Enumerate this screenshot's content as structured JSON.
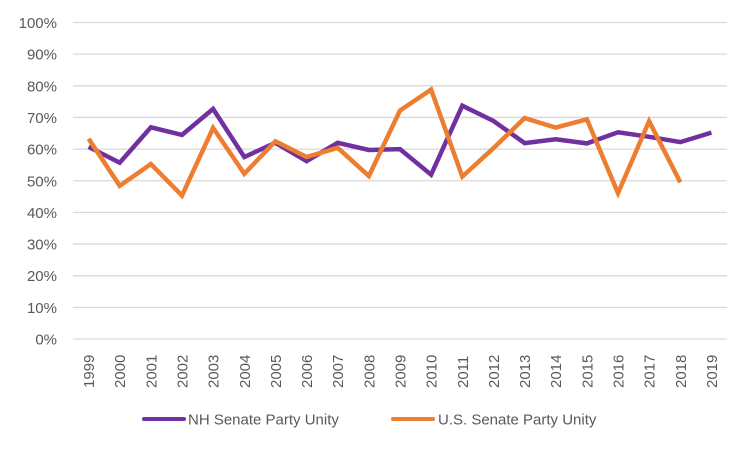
{
  "chart_data": {
    "type": "line",
    "title": "",
    "xlabel": "",
    "ylabel": "",
    "categories": [
      "1999",
      "2000",
      "2001",
      "2002",
      "2003",
      "2004",
      "2005",
      "2006",
      "2007",
      "2008",
      "2009",
      "2010",
      "2011",
      "2012",
      "2013",
      "2014",
      "2015",
      "2016",
      "2017",
      "2018",
      "2019"
    ],
    "ylim": [
      0,
      1
    ],
    "yticks": [
      0,
      0.1,
      0.2,
      0.3,
      0.4,
      0.5,
      0.6,
      0.7,
      0.8,
      0.9,
      1.0
    ],
    "ytick_labels": [
      "0%",
      "10%",
      "20%",
      "30%",
      "40%",
      "50%",
      "60%",
      "70%",
      "80%",
      "90%",
      "100%"
    ],
    "grid": true,
    "legend_position": "bottom",
    "series": [
      {
        "name": "NH Senate Party Unity",
        "color": "#7030A0",
        "values": [
          0.607,
          0.557,
          0.669,
          0.645,
          0.727,
          0.575,
          0.62,
          0.562,
          0.62,
          0.597,
          0.6,
          0.519,
          0.737,
          0.689,
          0.619,
          0.631,
          0.618,
          0.653,
          0.639,
          0.622,
          0.652
        ]
      },
      {
        "name": "U.S. Senate Party Unity",
        "color": "#ED7D31",
        "values": [
          0.633,
          0.484,
          0.553,
          0.453,
          0.667,
          0.522,
          0.625,
          0.575,
          0.604,
          0.515,
          0.722,
          0.788,
          0.513,
          0.603,
          0.698,
          0.668,
          0.694,
          0.461,
          0.688,
          0.495,
          null
        ]
      }
    ]
  }
}
